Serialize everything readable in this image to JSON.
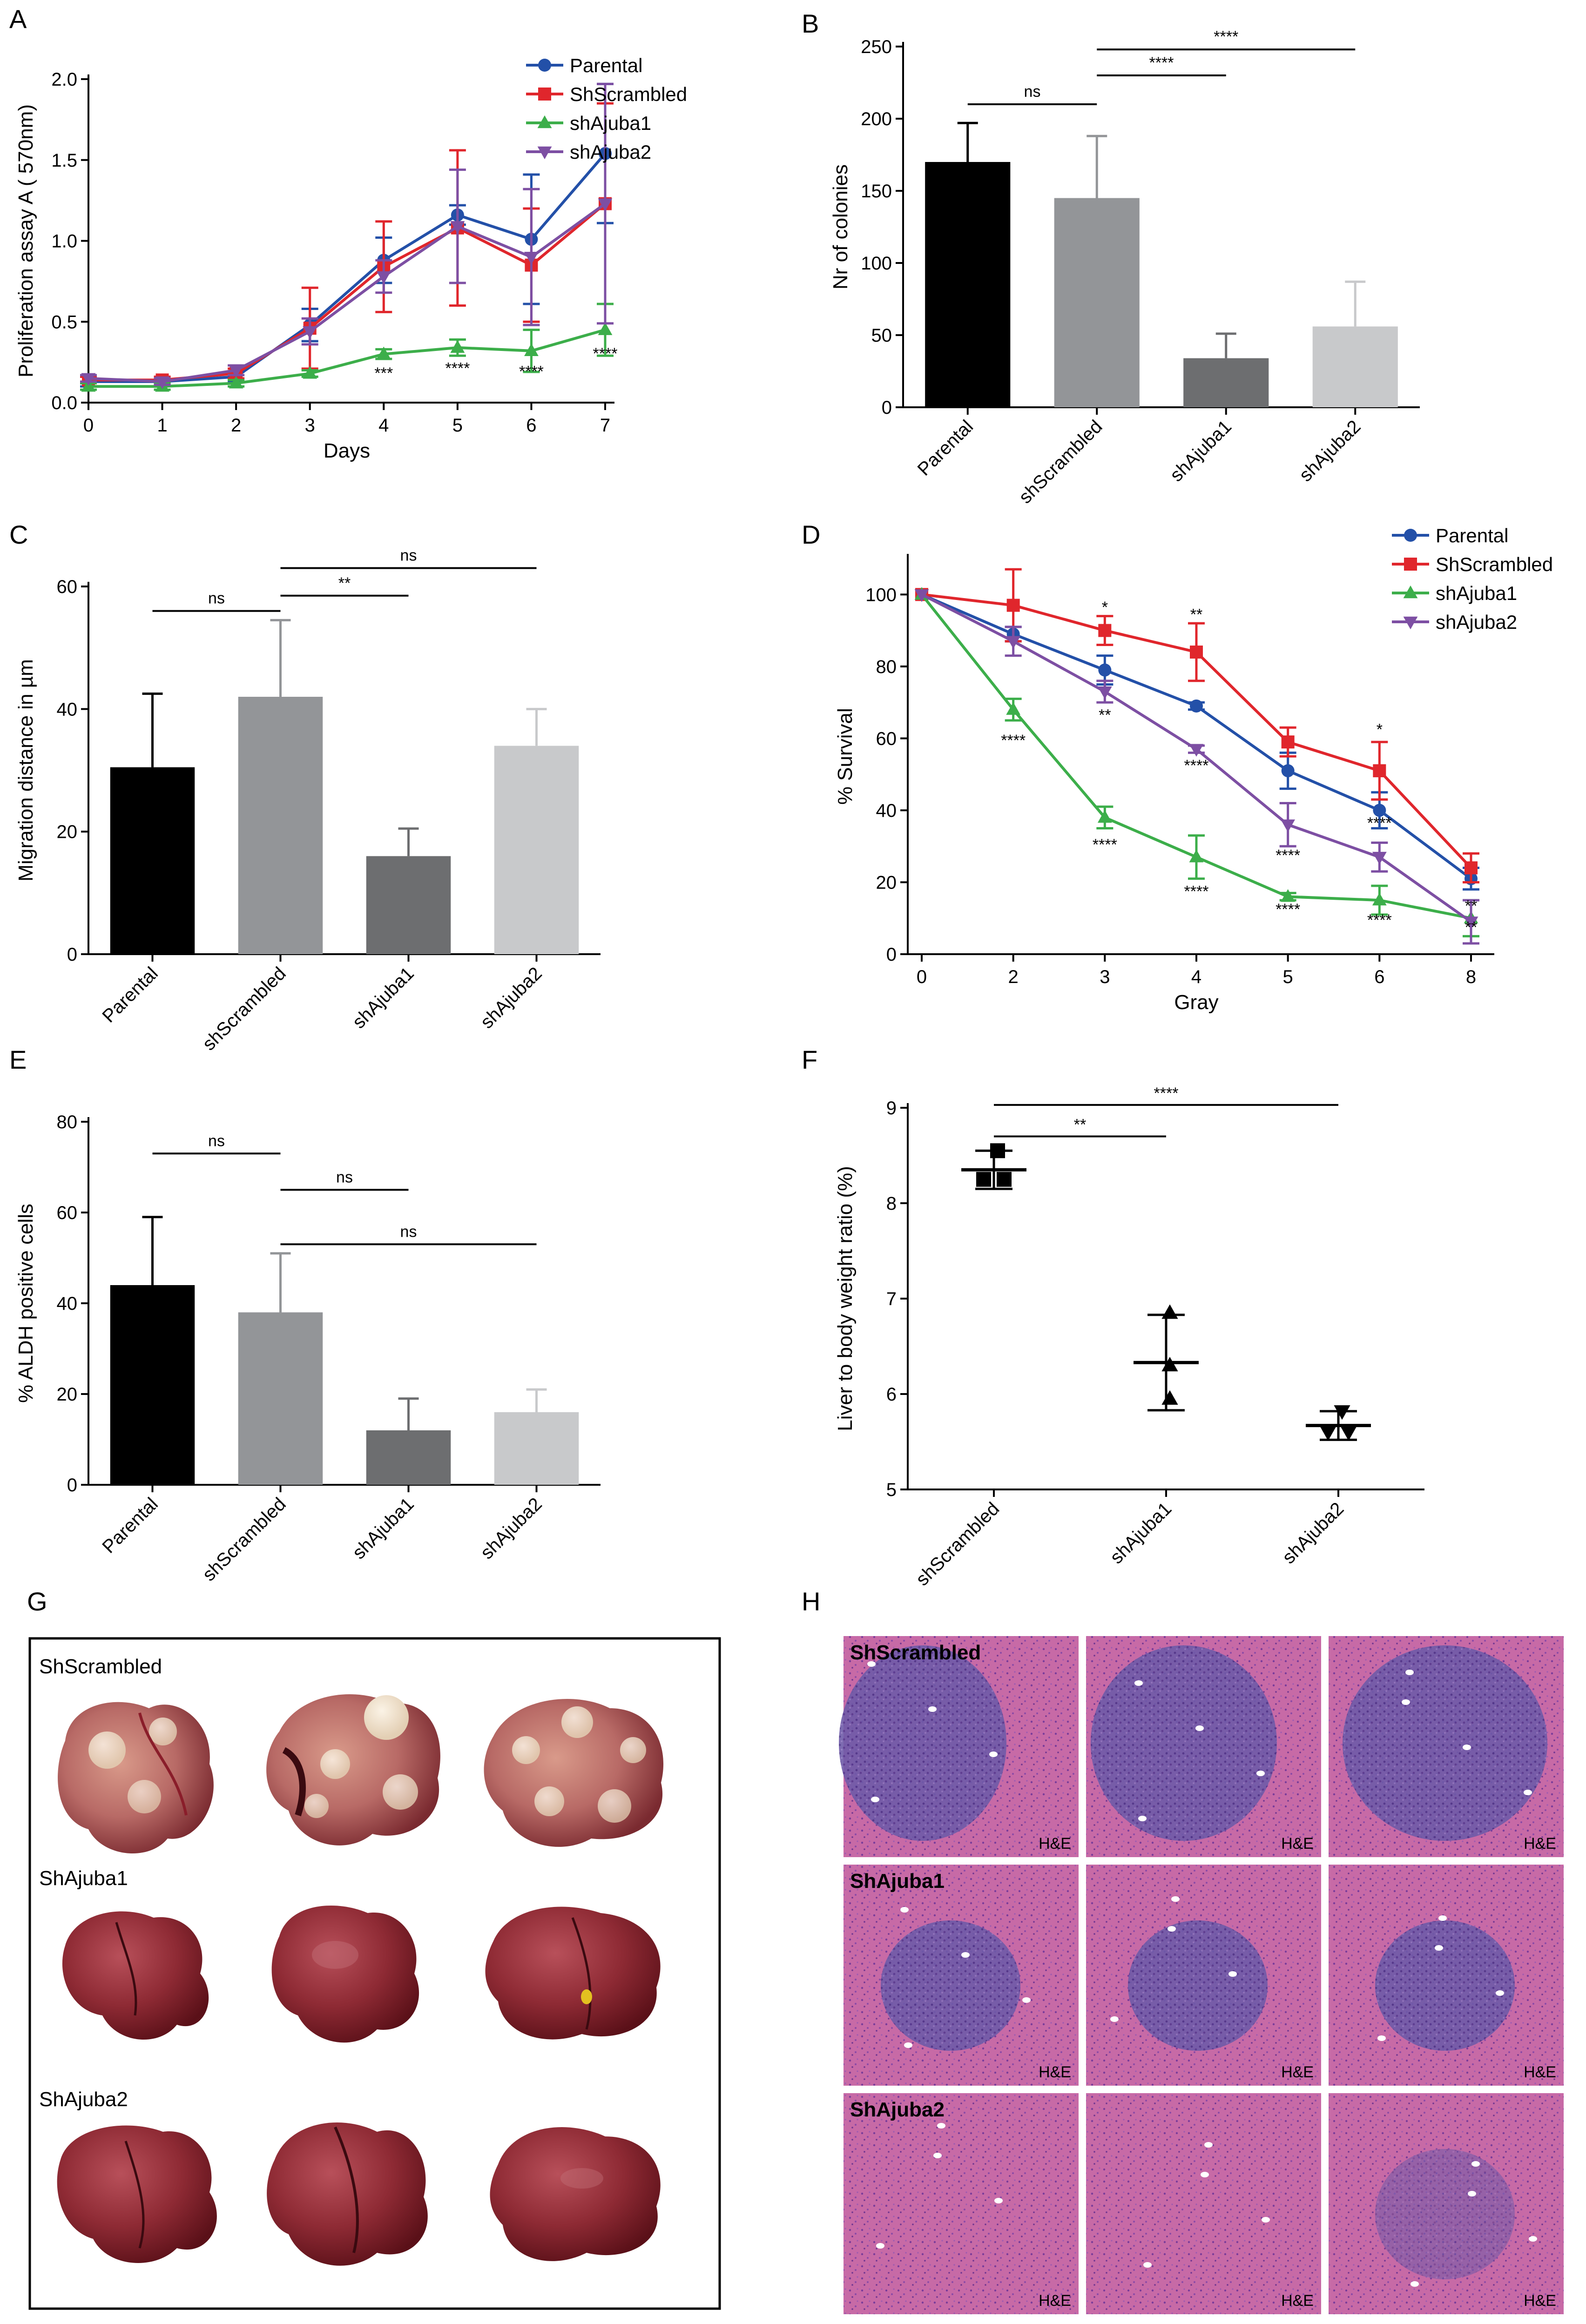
{
  "panels": {
    "A": "A",
    "B": "B",
    "C": "C",
    "D": "D",
    "E": "E",
    "F": "F",
    "G": "G",
    "H": "H"
  },
  "colors": {
    "parental": "#2350a8",
    "scrambled": "#e0262c",
    "shAjuba1": "#3cae4a",
    "shAjuba2": "#7d4fa3",
    "bar_black": "#000000",
    "bar_gray1": "#939598",
    "bar_gray2": "#6d6e70",
    "bar_gray3": "#c8c9cb"
  },
  "chart_data": [
    {
      "id": "A",
      "type": "line",
      "title": "",
      "xlabel": "Days",
      "ylabel": "Proliferation assay A ( 570nm)",
      "xlim": [
        0,
        7
      ],
      "ylim": [
        0,
        2.0
      ],
      "xticks": [
        "0",
        "1",
        "2",
        "3",
        "4",
        "5",
        "6",
        "7"
      ],
      "yticks": [
        "0.0",
        "0.5",
        "1.0",
        "1.5",
        "2.0"
      ],
      "x": [
        0,
        1,
        2,
        3,
        4,
        5,
        6,
        7
      ],
      "series": [
        {
          "name": "Parental",
          "color_key": "parental",
          "marker": "circle",
          "values": [
            0.13,
            0.13,
            0.16,
            0.48,
            0.88,
            1.16,
            1.01,
            1.54
          ],
          "errors": [
            0.03,
            0.02,
            0.03,
            0.1,
            0.14,
            0.06,
            0.4,
            0.43
          ]
        },
        {
          "name": "ShScrambled",
          "color_key": "scrambled",
          "marker": "square",
          "values": [
            0.14,
            0.14,
            0.18,
            0.46,
            0.84,
            1.08,
            0.85,
            1.23
          ],
          "errors": [
            0.02,
            0.02,
            0.03,
            0.25,
            0.28,
            0.48,
            0.35,
            0.62
          ]
        },
        {
          "name": "shAjuba1",
          "color_key": "shAjuba1",
          "marker": "triangle-up",
          "values": [
            0.1,
            0.1,
            0.12,
            0.18,
            0.3,
            0.34,
            0.32,
            0.45
          ],
          "errors": [
            0.02,
            0.02,
            0.02,
            0.02,
            0.03,
            0.05,
            0.13,
            0.16
          ]
        },
        {
          "name": "shAjuba2",
          "color_key": "shAjuba2",
          "marker": "triangle-down",
          "values": [
            0.15,
            0.13,
            0.2,
            0.44,
            0.78,
            1.09,
            0.9,
            1.23
          ],
          "errors": [
            0.02,
            0.02,
            0.03,
            0.08,
            0.1,
            0.35,
            0.42,
            0.74
          ]
        }
      ],
      "annotations": [
        {
          "x": 4,
          "y": 0.15,
          "text": "***"
        },
        {
          "x": 5,
          "y": 0.18,
          "text": "****"
        },
        {
          "x": 6,
          "y": 0.16,
          "text": "****"
        },
        {
          "x": 7,
          "y": 0.27,
          "text": "****"
        }
      ],
      "legend": "top-right"
    },
    {
      "id": "B",
      "type": "bar",
      "xlabel": "",
      "ylabel": "Nr of colonies",
      "ylim": [
        0,
        250
      ],
      "yticks": [
        "0",
        "50",
        "100",
        "150",
        "200",
        "250"
      ],
      "categories": [
        "Parental",
        "shScrambled",
        "shAjuba1",
        "shAjuba2"
      ],
      "values": [
        170,
        145,
        34,
        56
      ],
      "errors": [
        27,
        43,
        17,
        31
      ],
      "bar_color_keys": [
        "bar_black",
        "bar_gray1",
        "bar_gray2",
        "bar_gray3"
      ],
      "significance": [
        {
          "from": 0,
          "to": 1,
          "y": 210,
          "text": "ns"
        },
        {
          "from": 1,
          "to": 2,
          "y": 230,
          "text": "****"
        },
        {
          "from": 1,
          "to": 3,
          "y": 248,
          "text": "****"
        }
      ]
    },
    {
      "id": "C",
      "type": "bar",
      "xlabel": "",
      "ylabel": "Migration distance in µm",
      "ylim": [
        0,
        60
      ],
      "yticks": [
        "0",
        "20",
        "40",
        "60"
      ],
      "categories": [
        "Parental",
        "shScrambled",
        "shAjuba1",
        "shAjuba2"
      ],
      "values": [
        30.5,
        42,
        16,
        34
      ],
      "errors": [
        12,
        12.5,
        4.5,
        6
      ],
      "bar_color_keys": [
        "bar_black",
        "bar_gray1",
        "bar_gray2",
        "bar_gray3"
      ],
      "significance": [
        {
          "from": 0,
          "to": 1,
          "y": 56,
          "text": "ns"
        },
        {
          "from": 1,
          "to": 2,
          "y": 58.5,
          "text": "**"
        },
        {
          "from": 1,
          "to": 3,
          "y": 63,
          "text": "ns"
        }
      ]
    },
    {
      "id": "D",
      "type": "line",
      "xlabel": "Gray",
      "ylabel": "% Survival",
      "ylim": [
        0,
        110
      ],
      "yticks": [
        "0",
        "20",
        "40",
        "60",
        "80",
        "100"
      ],
      "xticks": [
        "0",
        "2",
        "3",
        "4",
        "5",
        "6",
        "8"
      ],
      "x": [
        "0",
        "2",
        "3",
        "4",
        "5",
        "6",
        "8"
      ],
      "series": [
        {
          "name": "Parental",
          "color_key": "parental",
          "marker": "circle",
          "values": [
            100,
            89,
            79,
            69,
            51,
            40,
            21
          ],
          "errors": [
            0,
            2,
            4,
            1,
            5,
            5,
            3
          ]
        },
        {
          "name": "ShScrambled",
          "color_key": "scrambled",
          "marker": "square",
          "values": [
            100,
            97,
            90,
            84,
            59,
            51,
            24
          ],
          "errors": [
            0,
            10,
            4,
            8,
            4,
            8,
            4
          ]
        },
        {
          "name": "shAjuba1",
          "color_key": "shAjuba1",
          "marker": "triangle-up",
          "values": [
            100,
            68,
            38,
            27,
            16,
            15,
            10
          ],
          "errors": [
            0,
            3,
            3,
            6,
            1,
            4,
            5
          ]
        },
        {
          "name": "shAjuba2",
          "color_key": "shAjuba2",
          "marker": "triangle-down",
          "values": [
            100,
            87,
            73,
            57,
            36,
            27,
            9
          ],
          "errors": [
            0,
            4,
            3,
            1,
            6,
            4,
            6
          ]
        }
      ],
      "annotations": [
        {
          "x": "3",
          "y": 95,
          "text": "*",
          "color": "#000"
        },
        {
          "x": "4",
          "y": 93,
          "text": "**",
          "color": "#000"
        },
        {
          "x": "6",
          "y": 61,
          "text": "*",
          "color": "#000"
        },
        {
          "x": "2",
          "y": 58,
          "text": "****",
          "color": "#000"
        },
        {
          "x": "3",
          "y": 65,
          "text": "**",
          "color": "#000"
        },
        {
          "x": "4",
          "y": 51,
          "text": "****",
          "color": "#000"
        },
        {
          "x": "5",
          "y": 26,
          "text": "****",
          "color": "#000"
        },
        {
          "x": "6",
          "y": 35,
          "text": "****",
          "color": "#000"
        },
        {
          "x": "3",
          "y": 29,
          "text": "****",
          "color": "#000"
        },
        {
          "x": "4",
          "y": 16,
          "text": "****",
          "color": "#000"
        },
        {
          "x": "5",
          "y": 11,
          "text": "****",
          "color": "#000"
        },
        {
          "x": "6",
          "y": 8,
          "text": "****",
          "color": "#000"
        },
        {
          "x": "8",
          "y": 12,
          "text": "**",
          "color": "#000"
        },
        {
          "x": "8",
          "y": 6,
          "text": "**",
          "color": "#000"
        }
      ],
      "legend": "top-right"
    },
    {
      "id": "E",
      "type": "bar",
      "xlabel": "",
      "ylabel": "% ALDH positive cells",
      "ylim": [
        0,
        80
      ],
      "yticks": [
        "0",
        "20",
        "40",
        "60",
        "80"
      ],
      "categories": [
        "Parental",
        "shScrambled",
        "shAjuba1",
        "shAjuba2"
      ],
      "values": [
        44,
        38,
        12,
        16
      ],
      "errors": [
        15,
        13,
        7,
        5
      ],
      "bar_color_keys": [
        "bar_black",
        "bar_gray1",
        "bar_gray2",
        "bar_gray3"
      ],
      "significance": [
        {
          "from": 0,
          "to": 1,
          "y": 73,
          "text": "ns"
        },
        {
          "from": 1,
          "to": 2,
          "y": 65,
          "text": "ns"
        },
        {
          "from": 1,
          "to": 3,
          "y": 53,
          "text": "ns"
        }
      ]
    },
    {
      "id": "F",
      "type": "scatter",
      "xlabel": "",
      "ylabel": "Liver to body weight ratio (%)",
      "ylim": [
        5,
        9
      ],
      "yticks": [
        "5",
        "6",
        "7",
        "8",
        "9"
      ],
      "categories": [
        "shScrambled",
        "shAjuba1",
        "shAjuba2"
      ],
      "points": [
        {
          "group": 0,
          "y": 8.55,
          "marker": "square"
        },
        {
          "group": 0,
          "y": 8.25,
          "marker": "square"
        },
        {
          "group": 0,
          "y": 8.25,
          "marker": "square"
        },
        {
          "group": 1,
          "y": 6.85,
          "marker": "triangle-up"
        },
        {
          "group": 1,
          "y": 6.3,
          "marker": "triangle-up"
        },
        {
          "group": 1,
          "y": 5.95,
          "marker": "triangle-up"
        },
        {
          "group": 2,
          "y": 5.82,
          "marker": "triangle-down"
        },
        {
          "group": 2,
          "y": 5.6,
          "marker": "triangle-down"
        },
        {
          "group": 2,
          "y": 5.6,
          "marker": "triangle-down"
        }
      ],
      "means": [
        8.35,
        6.33,
        5.67
      ],
      "errors": [
        0.2,
        0.5,
        0.15
      ],
      "significance": [
        {
          "from": 0,
          "to": 1,
          "y": 8.7,
          "text": "**"
        },
        {
          "from": 0,
          "to": 2,
          "y": 9.03,
          "text": "****"
        }
      ]
    }
  ],
  "photos_G": {
    "rows": [
      "ShScrambled",
      "ShAjuba1",
      "ShAjuba2"
    ]
  },
  "histology_H": {
    "rows": [
      "ShScrambled",
      "ShAjuba1",
      "ShAjuba2"
    ],
    "stain_label": "H&E"
  }
}
